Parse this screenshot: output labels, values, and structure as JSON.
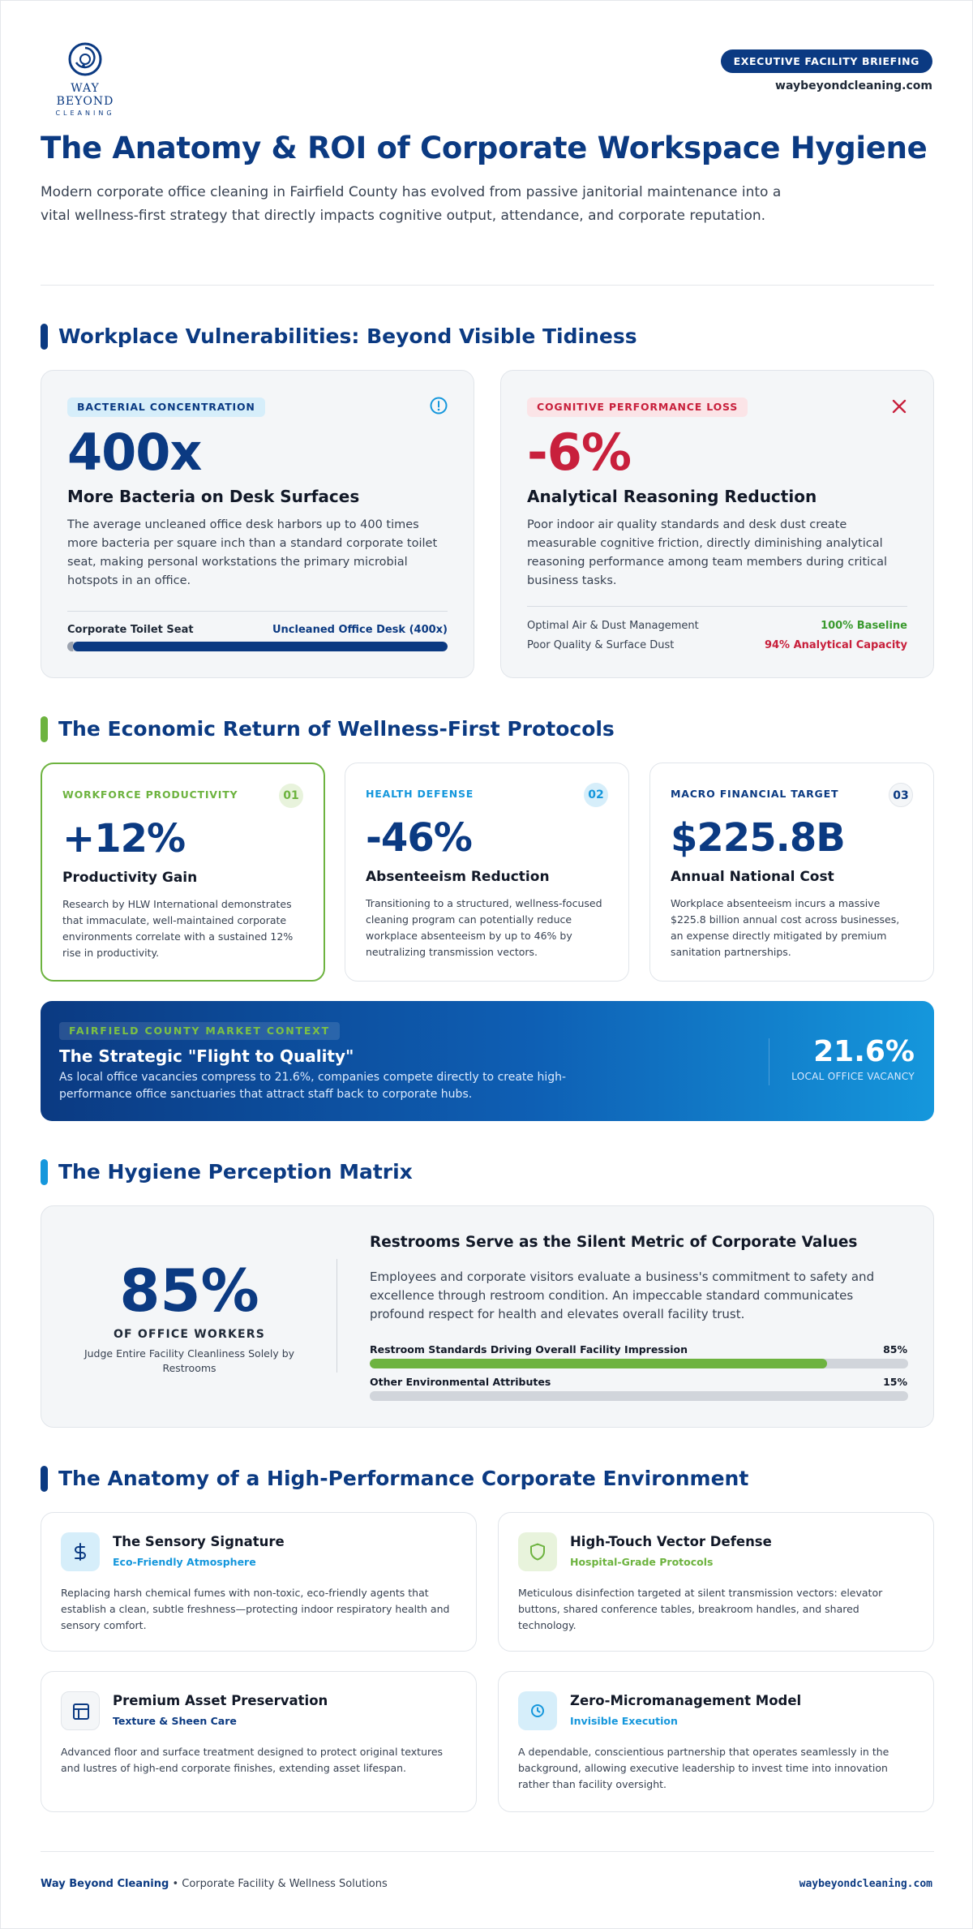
{
  "colors": {
    "navy": "#0b3a82",
    "blue": "#1597dc",
    "green": "#6db33f",
    "red": "#c8203c",
    "light_gray": "#f4f6f8"
  },
  "header": {
    "logo_name": "WAY BEYOND",
    "logo_sub": "CLEANING",
    "badge": "EXECUTIVE FACILITY BRIEFING",
    "site": "waybeyondcleaning.com",
    "title": "The Anatomy & ROI of Corporate Workspace Hygiene",
    "intro": "Modern corporate office cleaning in Fairfield County has evolved from passive janitorial maintenance into a vital wellness-first strategy that directly impacts cognitive output, attendance, and corporate reputation."
  },
  "vulnerabilities": {
    "title": "Workplace Vulnerabilities: Beyond Visible Tidiness",
    "bacteria": {
      "pill": "BACTERIAL CONCENTRATION",
      "icon": "alert-circle-icon",
      "big": "400x",
      "subtitle": "More Bacteria on Desk Surfaces",
      "text": "The average uncleaned office desk harbors up to 400 times more bacteria per square inch than a standard corporate toilet seat, making personal workstations the primary microbial hotspots in an office.",
      "compare_left": "Corporate Toilet Seat",
      "compare_right": "Uncleaned Office Desk (400x)",
      "ratio": 400
    },
    "cognitive": {
      "pill": "COGNITIVE PERFORMANCE LOSS",
      "icon": "x-icon",
      "big": "-6%",
      "subtitle": "Analytical Reasoning Reduction",
      "text": "Poor indoor air quality standards and desk dust create measurable cognitive friction, directly diminishing analytical reasoning performance among team members during critical business tasks.",
      "rows": [
        {
          "label": "Optimal Air & Dust Management",
          "value": "100% Baseline"
        },
        {
          "label": "Poor Quality & Surface Dust",
          "value": "94% Analytical Capacity"
        }
      ]
    }
  },
  "economic": {
    "title": "The Economic Return of Wellness-First Protocols",
    "cards": [
      {
        "category": "WORKFORCE PRODUCTIVITY",
        "number": "01",
        "big": "+12%",
        "subtitle": "Productivity Gain",
        "text": "Research by HLW International demonstrates that immaculate, well-maintained corporate environments correlate with a sustained 12% rise in productivity."
      },
      {
        "category": "HEALTH DEFENSE",
        "number": "02",
        "big": "-46%",
        "subtitle": "Absenteeism Reduction",
        "text": "Transitioning to a structured, wellness-focused cleaning program can potentially reduce workplace absenteeism by up to 46% by neutralizing transmission vectors."
      },
      {
        "category": "MACRO FINANCIAL TARGET",
        "number": "03",
        "big": "$225.8B",
        "subtitle": "Annual National Cost",
        "text": "Workplace absenteeism incurs a massive $225.8 billion annual cost across businesses, an expense directly mitigated by premium sanitation partnerships."
      }
    ]
  },
  "banner": {
    "pill": "FAIRFIELD COUNTY MARKET CONTEXT",
    "title": "The Strategic \"Flight to Quality\"",
    "text": "As local office vacancies compress to 21.6%, companies compete directly to create high-performance office sanctuaries that attract staff back to corporate hubs.",
    "stat": "21.6%",
    "stat_label": "LOCAL OFFICE VACANCY"
  },
  "matrix": {
    "title": "The Hygiene Perception Matrix",
    "big": "85%",
    "big_label": "OF OFFICE WORKERS",
    "big_desc": "Judge Entire Facility Cleanliness Solely by Restrooms",
    "card_title": "Restrooms Serve as the Silent Metric of Corporate Values",
    "card_text": "Employees and corporate visitors evaluate a business's commitment to safety and excellence through restroom condition. An impeccable standard communicates profound respect for health and elevates overall facility trust.",
    "bars": [
      {
        "label": "Restroom Standards Driving Overall Facility Impression",
        "value": "85%",
        "fraction": 0.85
      },
      {
        "label": "Other Environmental Attributes",
        "value": "15%",
        "fraction": 0.15
      }
    ]
  },
  "anatomy": {
    "title": "The Anatomy of a High-Performance Corporate Environment",
    "cards": [
      {
        "icon": "dollar-icon",
        "title": "The Sensory Signature",
        "subtitle": "Eco-Friendly Atmosphere",
        "text": "Replacing harsh chemical fumes with non-toxic, eco-friendly agents that establish a clean, subtle freshness—protecting indoor respiratory health and sensory comfort."
      },
      {
        "icon": "shield-icon",
        "title": "High-Touch Vector Defense",
        "subtitle": "Hospital-Grade Protocols",
        "text": "Meticulous disinfection targeted at silent transmission vectors: elevator buttons, shared conference tables, breakroom handles, and shared technology."
      },
      {
        "icon": "layout-icon",
        "title": "Premium Asset Preservation",
        "subtitle": "Texture & Sheen Care",
        "text": "Advanced floor and surface treatment designed to protect original textures and lustres of high-end corporate finishes, extending asset lifespan."
      },
      {
        "icon": "clock-icon",
        "title": "Zero-Micromanagement Model",
        "subtitle": "Invisible Execution",
        "text": "A dependable, conscientious partnership that operates seamlessly in the background, allowing executive leadership to invest time into innovation rather than facility oversight."
      }
    ]
  },
  "footer": {
    "brand": "Way Beyond Cleaning",
    "tagline": " • Corporate Facility & Wellness Solutions",
    "site": "waybeyondcleaning.com"
  }
}
